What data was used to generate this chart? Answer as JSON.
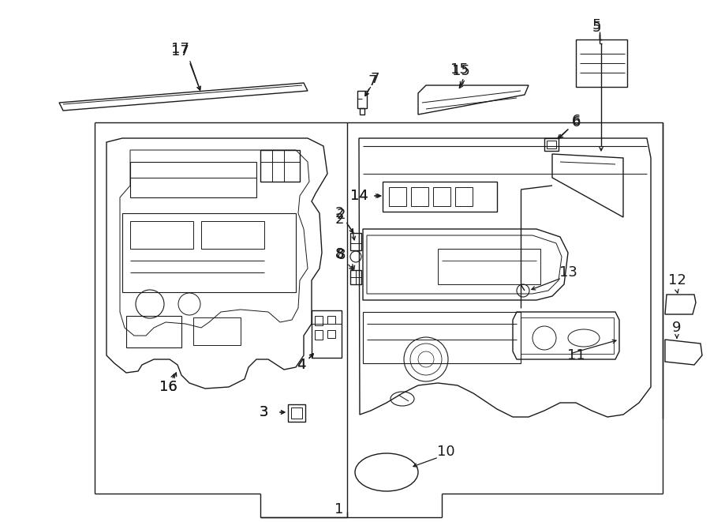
{
  "bg_color": "#ffffff",
  "line_color": "#1a1a1a",
  "lw": 1.0,
  "fig_width": 9.0,
  "fig_height": 6.61,
  "dpi": 100,
  "label_fs": 13
}
